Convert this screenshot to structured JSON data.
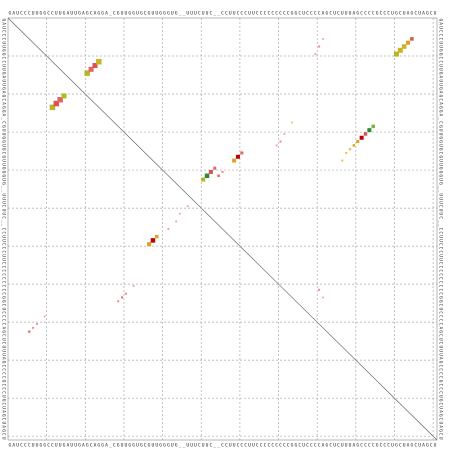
{
  "sequence": "GAUCCCUUGGCCUUGAUUGAGCAGGA_CGUUGGUGCGUUGGGUG__UUUCUUC__CCUUCCCUUCCCCCCCCCGGCUCCCCAGCUCUUUAGCCCCGCCCUGCUAGCUAGCU",
  "pairs": [
    {
      "i": 24,
      "j": 12,
      "p": 0.9,
      "color": "#b5b526"
    },
    {
      "i": 23,
      "j": 13,
      "p": 0.9,
      "color": "#d9534f"
    },
    {
      "i": 22,
      "j": 14,
      "p": 0.9,
      "color": "#e06666"
    },
    {
      "i": 21,
      "j": 15,
      "p": 0.8,
      "color": "#b5b526"
    },
    {
      "i": 15,
      "j": 21,
      "p": 0.9,
      "color": "#b5b526"
    },
    {
      "i": 14,
      "j": 22,
      "p": 0.8,
      "color": "#e06666"
    },
    {
      "i": 13,
      "j": 23,
      "p": 0.8,
      "color": "#d9534f"
    },
    {
      "i": 12,
      "j": 24,
      "p": 0.9,
      "color": "#c8b226"
    },
    {
      "i": 10,
      "j": 101,
      "p": 0.8,
      "color": "#b5b526"
    },
    {
      "i": 9,
      "j": 102,
      "p": 0.8,
      "color": "#d4b020"
    },
    {
      "i": 8,
      "j": 103,
      "p": 0.7,
      "color": "#c8b226"
    },
    {
      "i": 7,
      "j": 104,
      "p": 0.6,
      "color": "#e0a020"
    },
    {
      "i": 6,
      "j": 105,
      "p": 0.5,
      "color": "#d9534f"
    },
    {
      "i": 60,
      "j": 37,
      "p": 0.6,
      "color": "#e0a020"
    },
    {
      "i": 59,
      "j": 38,
      "p": 0.7,
      "color": "#c00000"
    },
    {
      "i": 58,
      "j": 39,
      "p": 0.5,
      "color": "#e0a020"
    },
    {
      "i": 43,
      "j": 51,
      "p": 0.6,
      "color": "#b5b526"
    },
    {
      "i": 42,
      "j": 52,
      "p": 0.7,
      "color": "#2e8b2e"
    },
    {
      "i": 41,
      "j": 53,
      "p": 0.6,
      "color": "#d9534f"
    },
    {
      "i": 40,
      "j": 54,
      "p": 0.4,
      "color": "#e06666"
    },
    {
      "i": 38,
      "j": 59,
      "p": 0.6,
      "color": "#e0a020"
    },
    {
      "i": 37,
      "j": 60,
      "p": 0.6,
      "color": "#c00000"
    },
    {
      "i": 36,
      "j": 61,
      "p": 0.4,
      "color": "#e06666"
    },
    {
      "i": 33,
      "j": 91,
      "p": 0.4,
      "color": "#e0a020"
    },
    {
      "i": 32,
      "j": 92,
      "p": 0.6,
      "color": "#c00000"
    },
    {
      "i": 31,
      "j": 93,
      "p": 0.5,
      "color": "#d9534f"
    },
    {
      "i": 30,
      "j": 94,
      "p": 0.6,
      "color": "#2e8b2e"
    },
    {
      "i": 29,
      "j": 95,
      "p": 0.5,
      "color": "#7cb342"
    },
    {
      "i": 34,
      "j": 90,
      "p": 0.3,
      "color": "#e0a020"
    },
    {
      "i": 35,
      "j": 89,
      "p": 0.25,
      "color": "#f0c040"
    },
    {
      "i": 36,
      "j": 88,
      "p": 0.2,
      "color": "#f0c040"
    },
    {
      "i": 38,
      "j": 87,
      "p": 0.2,
      "color": "#f0c040"
    },
    {
      "i": 83,
      "j": 6,
      "p": 0.25,
      "color": "#e06666"
    },
    {
      "i": 82,
      "j": 7,
      "p": 0.2,
      "color": "#ee8888"
    },
    {
      "i": 81,
      "j": 8,
      "p": 0.2,
      "color": "#f4a0a0"
    },
    {
      "i": 79,
      "j": 10,
      "p": 0.15,
      "color": "#f4a0a0"
    },
    {
      "i": 75,
      "j": 29,
      "p": 0.2,
      "color": "#ee8888"
    },
    {
      "i": 74,
      "j": 30,
      "p": 0.2,
      "color": "#e06666"
    },
    {
      "i": 73,
      "j": 31,
      "p": 0.2,
      "color": "#ee8888"
    },
    {
      "i": 71,
      "j": 33,
      "p": 0.15,
      "color": "#f4a0a0"
    },
    {
      "i": 56,
      "j": 42,
      "p": 0.2,
      "color": "#f4a0a0"
    },
    {
      "i": 54,
      "j": 44,
      "p": 0.15,
      "color": "#f4a0a0"
    },
    {
      "i": 52,
      "j": 45,
      "p": 0.15,
      "color": "#f4a0a0"
    },
    {
      "i": 50,
      "j": 47,
      "p": 0.15,
      "color": "#f4a0a0"
    },
    {
      "i": 42,
      "j": 55,
      "p": 0.3,
      "color": "#e06666"
    },
    {
      "i": 41,
      "j": 56,
      "p": 0.2,
      "color": "#ee8888"
    },
    {
      "i": 34,
      "j": 70,
      "p": 0.2,
      "color": "#f4a0a0"
    },
    {
      "i": 33,
      "j": 71,
      "p": 0.2,
      "color": "#ee8888"
    },
    {
      "i": 31,
      "j": 72,
      "p": 0.15,
      "color": "#f4a0a0"
    },
    {
      "i": 28,
      "j": 74,
      "p": 0.15,
      "color": "#f0c040"
    },
    {
      "i": 10,
      "j": 80,
      "p": 0.2,
      "color": "#f4a0a0"
    },
    {
      "i": 8,
      "j": 81,
      "p": 0.2,
      "color": "#ee8888"
    },
    {
      "i": 6,
      "j": 82,
      "p": 0.15,
      "color": "#f4a0a0"
    },
    {
      "i": 72,
      "j": 81,
      "p": 0.2,
      "color": "#ee8888"
    },
    {
      "i": 74,
      "j": 82,
      "p": 0.15,
      "color": "#f4a0a0"
    }
  ]
}
